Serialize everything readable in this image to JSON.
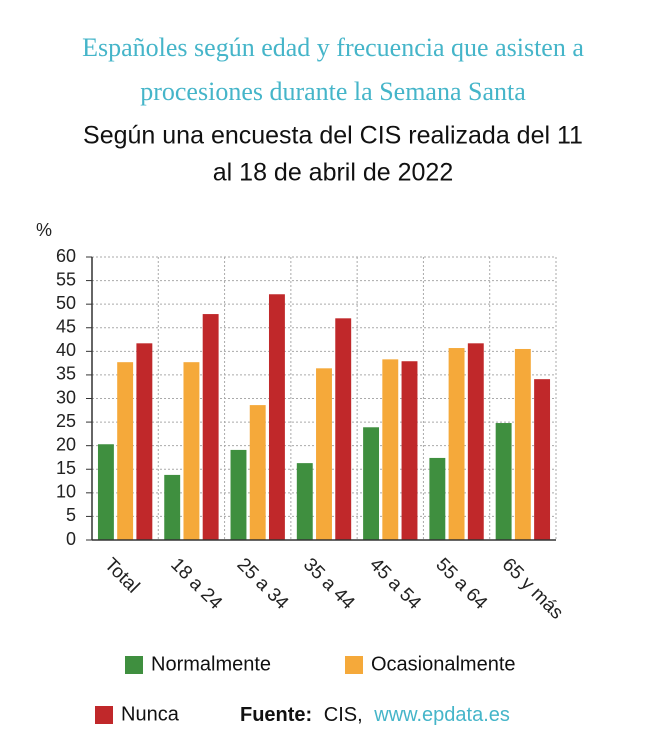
{
  "chart_data": {
    "type": "bar",
    "title": [
      "Españoles según edad y frecuencia que asisten a",
      "procesiones durante la Semana Santa"
    ],
    "subtitle": [
      "Según una encuesta del CIS realizada del 11",
      "al 18 de abril de 2022"
    ],
    "y_label": "%",
    "categories": [
      "Total",
      "18 a 24",
      "25 a 34",
      "35 a 44",
      "45 a 54",
      "55 a 64",
      "65 y más"
    ],
    "series": [
      {
        "name": "Normalmente",
        "color": "#3f8f3f",
        "values": [
          20.3,
          13.8,
          19.1,
          16.3,
          23.9,
          17.4,
          24.8
        ]
      },
      {
        "name": "Ocasionalmente",
        "color": "#f5a93a",
        "values": [
          37.7,
          37.7,
          28.6,
          36.4,
          38.3,
          40.7,
          40.5
        ]
      },
      {
        "name": "Nunca",
        "color": "#c0282a",
        "values": [
          41.7,
          47.9,
          52.1,
          47.0,
          37.9,
          41.7,
          34.1
        ]
      }
    ],
    "ylim": [
      0,
      60
    ],
    "yticks": [
      0,
      5,
      10,
      15,
      20,
      25,
      30,
      35,
      40,
      45,
      50,
      55,
      60
    ],
    "grid": true,
    "source_label": "Fuente:",
    "source": "CIS,",
    "source_url": "www.epdata.es"
  }
}
